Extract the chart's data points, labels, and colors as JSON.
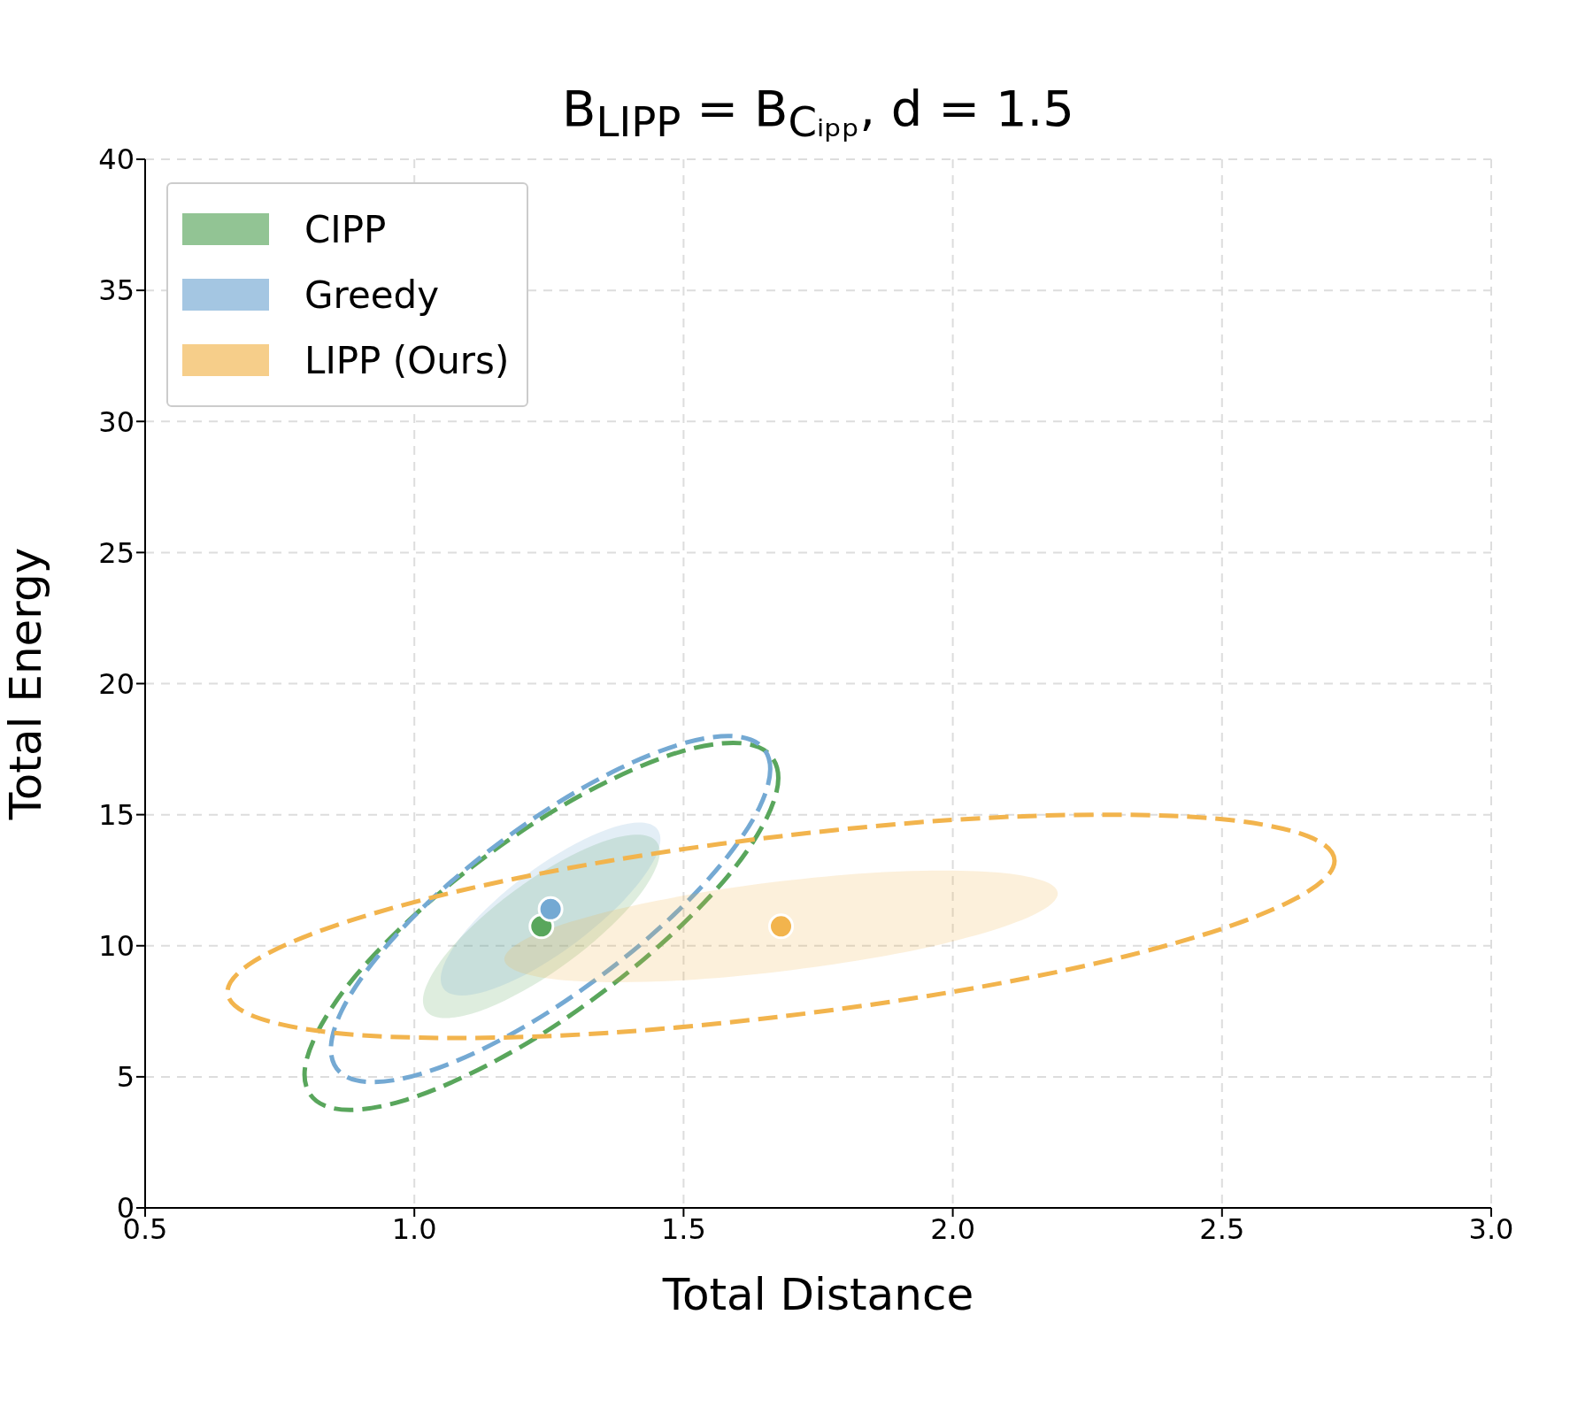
{
  "chart_data": {
    "type": "scatter",
    "title": "B$_{LIPP}$ = B$_{Cᵢₚₚ}$,  d = 1.5",
    "xlabel": "Total Distance",
    "ylabel": "Total Energy",
    "xlim": [
      0.5,
      3.0
    ],
    "xticks": [
      {
        "value": 0.5,
        "label": "0.5"
      },
      {
        "value": 1,
        "label": "1.0"
      },
      {
        "value": 1.5,
        "label": "1.5"
      },
      {
        "value": 2,
        "label": "2.0"
      },
      {
        "value": 2.5,
        "label": "2.5"
      },
      {
        "value": 3,
        "label": "3.0"
      }
    ],
    "ylim": [
      0,
      40
    ],
    "yticks": [
      0,
      5,
      10,
      15,
      20,
      25,
      30,
      35,
      40
    ],
    "grid": true,
    "legend": "top left",
    "series": [
      {
        "type": "area",
        "name": "CIPP",
        "color": "#59a65c",
        "x": [
          1.456,
          1.445,
          1.414,
          1.365,
          1.304,
          1.236,
          1.168,
          1.107,
          1.058,
          1.027,
          1.016,
          1.027,
          1.058,
          1.107,
          1.168,
          1.236,
          1.304,
          1.365,
          1.414,
          1.445
        ],
        "values": [
          13.57,
          14.07,
          14.24,
          14.07,
          13.57,
          12.8,
          11.82,
          10.74,
          9.66,
          8.68,
          7.91,
          7.41,
          7.24,
          7.41,
          7.91,
          8.68,
          9.66,
          10.74,
          11.82,
          12.8
        ]
      },
      {
        "type": "area",
        "name": "Greedy",
        "color": "#74a9d3",
        "x": [
          1.457,
          1.447,
          1.418,
          1.373,
          1.316,
          1.253,
          1.19,
          1.133,
          1.088,
          1.059,
          1.049,
          1.059,
          1.088,
          1.133,
          1.19,
          1.253,
          1.316,
          1.373,
          1.418,
          1.447
        ],
        "values": [
          14.07,
          14.54,
          14.7,
          14.54,
          14.07,
          13.34,
          12.42,
          11.4,
          10.38,
          9.46,
          8.73,
          8.26,
          8.1,
          8.26,
          8.73,
          9.46,
          10.38,
          11.4,
          12.42,
          13.34
        ]
      },
      {
        "type": "area",
        "name": "LIPP (Ours)",
        "color": "#f2b44d",
        "x": [
          2.195,
          2.17,
          2.097,
          1.983,
          1.84,
          1.681,
          1.522,
          1.379,
          1.265,
          1.192,
          1.167,
          1.192,
          1.265,
          1.379,
          1.522,
          1.681,
          1.84,
          1.983,
          2.097,
          2.17
        ],
        "values": [
          11.99,
          12.46,
          12.77,
          12.87,
          12.77,
          12.46,
          11.99,
          11.4,
          10.74,
          10.08,
          9.49,
          9.02,
          8.71,
          8.61,
          8.71,
          9.02,
          9.49,
          10.08,
          10.74,
          11.4
        ]
      },
      {
        "type": "scatter",
        "marker": "circle",
        "color": "#59a65c",
        "x": [
          1.236
        ],
        "values": [
          10.74
        ]
      },
      {
        "type": "scatter",
        "marker": "circle",
        "color": "#74a9d3",
        "x": [
          1.253
        ],
        "values": [
          11.4
        ]
      },
      {
        "type": "scatter",
        "marker": "circle",
        "color": "#f2b44d",
        "x": [
          1.681
        ],
        "values": [
          10.74
        ]
      }
    ]
  }
}
